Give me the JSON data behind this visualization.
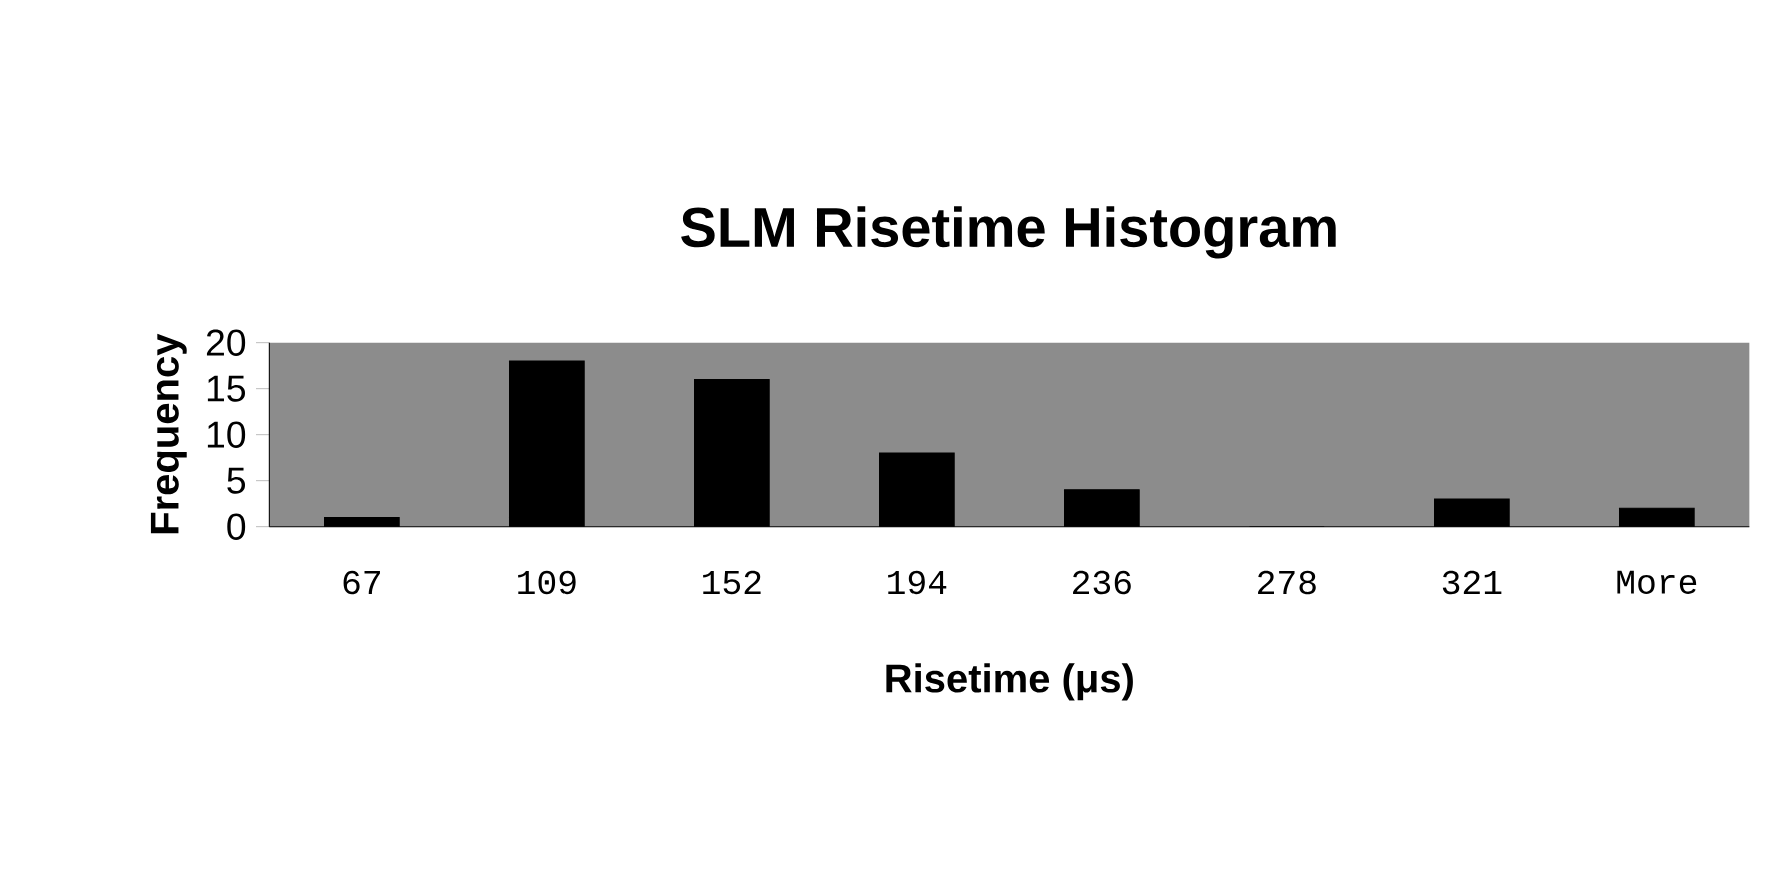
{
  "chart_data": {
    "type": "bar",
    "title": "SLM Risetime Histogram",
    "xlabel": "Risetime (μs)",
    "ylabel": "Frequency",
    "categories": [
      "67",
      "109",
      "152",
      "194",
      "236",
      "278",
      "321",
      "More"
    ],
    "values": [
      1,
      18,
      16,
      8,
      4,
      0,
      3,
      2
    ],
    "color": "#000000",
    "ylim": [
      0,
      20
    ],
    "yticks": [
      0,
      5,
      10,
      15,
      20
    ],
    "grid": false
  }
}
